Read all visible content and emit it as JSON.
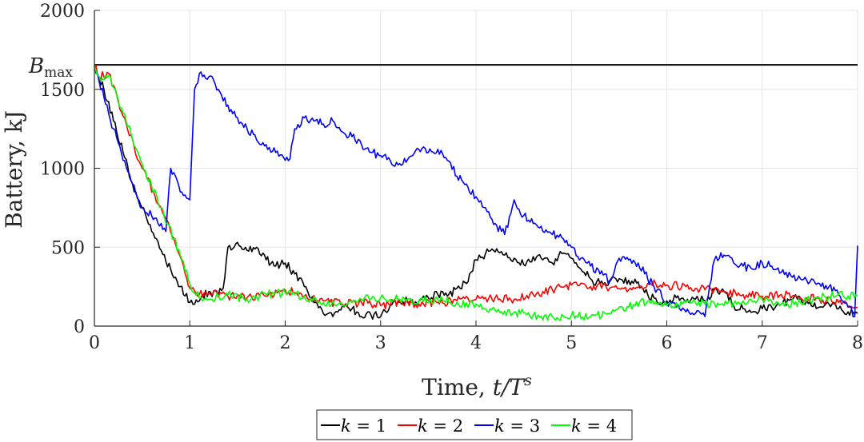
{
  "chart_data": {
    "type": "line",
    "title": "",
    "xlabel": "Time, ",
    "xlabel_math": {
      "base": "t/T",
      "sup": "s"
    },
    "ylabel": "Battery, kJ",
    "xlim": [
      0,
      8
    ],
    "ylim": [
      0,
      2000
    ],
    "xticks": [
      "0",
      "1",
      "2",
      "3",
      "4",
      "5",
      "6",
      "7",
      "8"
    ],
    "yticks": [
      "0",
      "500",
      "1000",
      "1500",
      "2000"
    ],
    "grid": true,
    "legend_position": "bottom-center",
    "reference_line": {
      "label_base": "B",
      "label_sub": "max",
      "y": 1655,
      "color": "#000000"
    },
    "series": [
      {
        "name": "k = 1",
        "legend_var": "k",
        "legend_val": "1",
        "color": "#000000",
        "x": [
          0,
          0.1,
          0.2,
          0.3,
          0.4,
          0.5,
          0.6,
          0.7,
          0.8,
          0.9,
          1.0,
          1.1,
          1.2,
          1.3,
          1.35,
          1.4,
          1.5,
          1.6,
          1.7,
          1.8,
          1.9,
          2.0,
          2.1,
          2.2,
          2.3,
          2.4,
          2.5,
          2.6,
          2.7,
          2.8,
          2.9,
          3.0,
          3.1,
          3.2,
          3.3,
          3.4,
          3.5,
          3.6,
          3.7,
          3.8,
          3.9,
          4.0,
          4.1,
          4.2,
          4.3,
          4.4,
          4.5,
          4.6,
          4.7,
          4.8,
          4.9,
          5.0,
          5.1,
          5.2,
          5.3,
          5.4,
          5.5,
          5.6,
          5.7,
          5.8,
          5.9,
          6.0,
          6.1,
          6.2,
          6.3,
          6.4,
          6.5,
          6.6,
          6.7,
          6.8,
          6.9,
          7.0,
          7.1,
          7.2,
          7.3,
          7.4,
          7.5,
          7.6,
          7.7,
          7.8,
          7.9,
          8.0
        ],
        "y": [
          1650,
          1500,
          1300,
          1100,
          900,
          750,
          600,
          480,
          360,
          250,
          150,
          160,
          220,
          200,
          240,
          500,
          530,
          480,
          500,
          420,
          380,
          400,
          330,
          250,
          150,
          80,
          60,
          130,
          110,
          60,
          70,
          60,
          130,
          170,
          150,
          160,
          180,
          200,
          190,
          240,
          270,
          420,
          460,
          470,
          450,
          430,
          390,
          440,
          420,
          400,
          460,
          430,
          360,
          300,
          270,
          280,
          300,
          290,
          280,
          200,
          150,
          160,
          180,
          150,
          170,
          160,
          230,
          220,
          130,
          110,
          90,
          110,
          120,
          140,
          170,
          180,
          150,
          120,
          140,
          110,
          90,
          80
        ]
      },
      {
        "name": "k = 2",
        "legend_var": "k",
        "legend_val": "2",
        "color": "#ff0000",
        "x": [
          0,
          0.05,
          0.15,
          0.3,
          0.5,
          0.7,
          0.9,
          1.0,
          1.1,
          1.2,
          1.4,
          1.6,
          1.8,
          2.0,
          2.2,
          2.4,
          2.6,
          2.8,
          3.0,
          3.2,
          3.4,
          3.6,
          3.8,
          4.0,
          4.2,
          4.4,
          4.6,
          4.8,
          5.0,
          5.2,
          5.4,
          5.6,
          5.8,
          6.0,
          6.2,
          6.4,
          6.6,
          6.8,
          7.0,
          7.2,
          7.4,
          7.6,
          7.8,
          8.0
        ],
        "y": [
          1650,
          1580,
          1600,
          1330,
          1000,
          750,
          440,
          240,
          200,
          210,
          190,
          180,
          190,
          230,
          190,
          160,
          140,
          150,
          130,
          150,
          140,
          150,
          160,
          170,
          180,
          170,
          200,
          230,
          260,
          250,
          240,
          230,
          270,
          260,
          250,
          230,
          220,
          200,
          190,
          200,
          180,
          170,
          150,
          120
        ]
      },
      {
        "name": "k = 3",
        "legend_var": "k",
        "legend_val": "3",
        "color": "#0000ff",
        "x": [
          0,
          0.1,
          0.2,
          0.3,
          0.4,
          0.5,
          0.6,
          0.7,
          0.75,
          0.8,
          0.85,
          0.9,
          1.0,
          1.05,
          1.1,
          1.2,
          1.3,
          1.4,
          1.5,
          1.6,
          1.7,
          1.8,
          1.9,
          2.0,
          2.05,
          2.1,
          2.2,
          2.3,
          2.4,
          2.5,
          2.6,
          2.7,
          2.8,
          2.9,
          3.0,
          3.1,
          3.2,
          3.3,
          3.4,
          3.5,
          3.6,
          3.7,
          3.8,
          3.9,
          4.0,
          4.1,
          4.2,
          4.3,
          4.4,
          4.5,
          4.6,
          4.7,
          4.8,
          4.9,
          5.0,
          5.1,
          5.2,
          5.3,
          5.4,
          5.5,
          5.6,
          5.7,
          5.8,
          5.9,
          6.0,
          6.1,
          6.2,
          6.3,
          6.4,
          6.5,
          6.6,
          6.7,
          6.8,
          6.9,
          7.0,
          7.1,
          7.2,
          7.3,
          7.4,
          7.5,
          7.6,
          7.7,
          7.8,
          7.9,
          7.97,
          8.0
        ],
        "y": [
          1650,
          1450,
          1250,
          1050,
          900,
          750,
          700,
          650,
          600,
          1000,
          950,
          850,
          800,
          1500,
          1600,
          1580,
          1500,
          1400,
          1320,
          1250,
          1180,
          1150,
          1100,
          1050,
          1060,
          1250,
          1320,
          1300,
          1280,
          1300,
          1230,
          1200,
          1150,
          1100,
          1080,
          1050,
          1030,
          1070,
          1120,
          1100,
          1120,
          1050,
          950,
          900,
          820,
          750,
          650,
          580,
          800,
          700,
          650,
          600,
          580,
          560,
          500,
          430,
          380,
          330,
          290,
          430,
          420,
          400,
          300,
          230,
          150,
          120,
          90,
          80,
          60,
          420,
          450,
          400,
          380,
          360,
          400,
          380,
          340,
          320,
          300,
          280,
          270,
          250,
          200,
          120,
          60,
          510
        ]
      },
      {
        "name": "k = 4",
        "legend_var": "k",
        "legend_val": "4",
        "color": "#00ff00",
        "x": [
          0,
          0.05,
          0.1,
          0.15,
          0.3,
          0.5,
          0.7,
          0.9,
          1.0,
          1.1,
          1.2,
          1.4,
          1.6,
          1.8,
          2.0,
          2.2,
          2.4,
          2.6,
          2.8,
          3.0,
          3.2,
          3.4,
          3.6,
          3.8,
          4.0,
          4.2,
          4.4,
          4.6,
          4.8,
          5.0,
          5.2,
          5.4,
          5.6,
          5.8,
          6.0,
          6.2,
          6.4,
          6.6,
          6.8,
          7.0,
          7.2,
          7.4,
          7.6,
          7.8,
          8.0
        ],
        "y": [
          1650,
          1580,
          1560,
          1590,
          1350,
          1030,
          750,
          450,
          270,
          180,
          170,
          200,
          170,
          200,
          210,
          190,
          150,
          130,
          170,
          180,
          170,
          160,
          170,
          150,
          140,
          100,
          90,
          70,
          60,
          70,
          60,
          80,
          120,
          160,
          130,
          150,
          140,
          130,
          160,
          170,
          140,
          150,
          180,
          200,
          190
        ]
      }
    ]
  }
}
